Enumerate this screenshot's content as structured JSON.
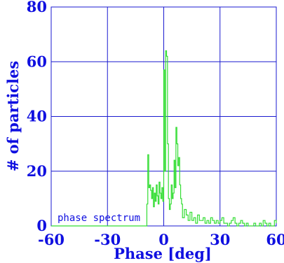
{
  "chart_data": {
    "type": "line",
    "title": "",
    "xlabel": "Phase [deg]",
    "ylabel": "# of particles",
    "annotation": "phase spectrum",
    "xlim": [
      -60,
      60
    ],
    "ylim": [
      0,
      80
    ],
    "xticks": [
      "-60",
      "-30",
      "0",
      "30",
      "60"
    ],
    "yticks": [
      "0",
      "20",
      "40",
      "60",
      "80"
    ],
    "grid": true,
    "series_color": "#33dd33",
    "axis_color": "#1a1ad0",
    "series": [
      {
        "x": [
          -60,
          -10,
          -9,
          -8.5,
          -8,
          -7.5,
          -7,
          -6.5,
          -6,
          -5.5,
          -5,
          -4.5,
          -4,
          -3.5,
          -3,
          -2.5,
          -2,
          -1.5,
          -1,
          -0.5,
          0,
          0.5,
          1,
          1.5,
          2,
          2.5,
          3,
          3.5,
          4,
          4.5,
          5,
          5.5,
          6,
          6.5,
          7,
          7.5,
          8,
          8.5,
          9,
          9.5,
          10,
          11,
          12,
          13,
          14,
          15,
          16,
          17,
          18,
          19,
          20,
          21,
          22,
          23,
          24,
          25,
          26,
          27,
          28,
          29,
          30,
          31,
          32,
          33,
          34,
          35,
          36,
          37,
          38,
          39,
          40,
          41,
          42,
          43,
          44,
          45,
          46,
          47,
          48,
          49,
          50,
          51,
          52,
          53,
          54,
          55,
          56,
          57,
          58,
          59,
          60
        ],
        "y": [
          0,
          0,
          8,
          26,
          14,
          15,
          13,
          10,
          14,
          7,
          12,
          9,
          15,
          11,
          8,
          16,
          12,
          10,
          14,
          9,
          57,
          20,
          64,
          62,
          30,
          10,
          6,
          8,
          15,
          10,
          12,
          24,
          14,
          36,
          30,
          22,
          25,
          15,
          10,
          8,
          3,
          6,
          4,
          2,
          5,
          2,
          3,
          1,
          4,
          2,
          2,
          3,
          1,
          2,
          1,
          3,
          2,
          1,
          2,
          1,
          2,
          3,
          1,
          1,
          0,
          1,
          2,
          3,
          1,
          0,
          1,
          2,
          1,
          0,
          1,
          0,
          0,
          0,
          1,
          0,
          0,
          1,
          0,
          2,
          1,
          0,
          1,
          0,
          0,
          2,
          1
        ]
      }
    ]
  }
}
